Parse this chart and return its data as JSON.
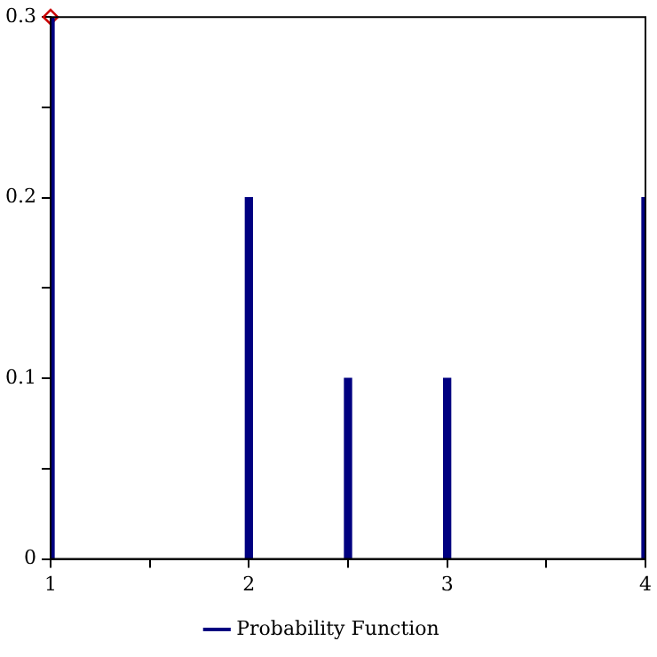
{
  "chart_data": {
    "type": "bar",
    "x": [
      1,
      2,
      2.5,
      3,
      4
    ],
    "xlim": [
      1,
      4
    ],
    "xticks": [
      1,
      {
        "value": 1.5,
        "label": null
      },
      2,
      {
        "value": 2.5,
        "label": null
      },
      3,
      {
        "value": 3.5,
        "label": null
      },
      4
    ],
    "ylim": [
      0,
      0.3
    ],
    "yticks": [
      0,
      {
        "value": 0.05,
        "label": null
      },
      0.1,
      {
        "value": 0.15,
        "label": null
      },
      0.2,
      {
        "value": 0.25,
        "label": null
      },
      0.3
    ],
    "grid": false,
    "legend": "bottom",
    "series": [
      {
        "name": "Probability Function",
        "color": "#000080",
        "values": [
          0.3,
          0.2,
          0.1,
          0.1,
          0.2
        ]
      },
      {
        "type": "scatter",
        "x": [
          1
        ],
        "values": [
          0.3
        ],
        "color": "#cc0000",
        "marker": "diamond"
      }
    ]
  }
}
